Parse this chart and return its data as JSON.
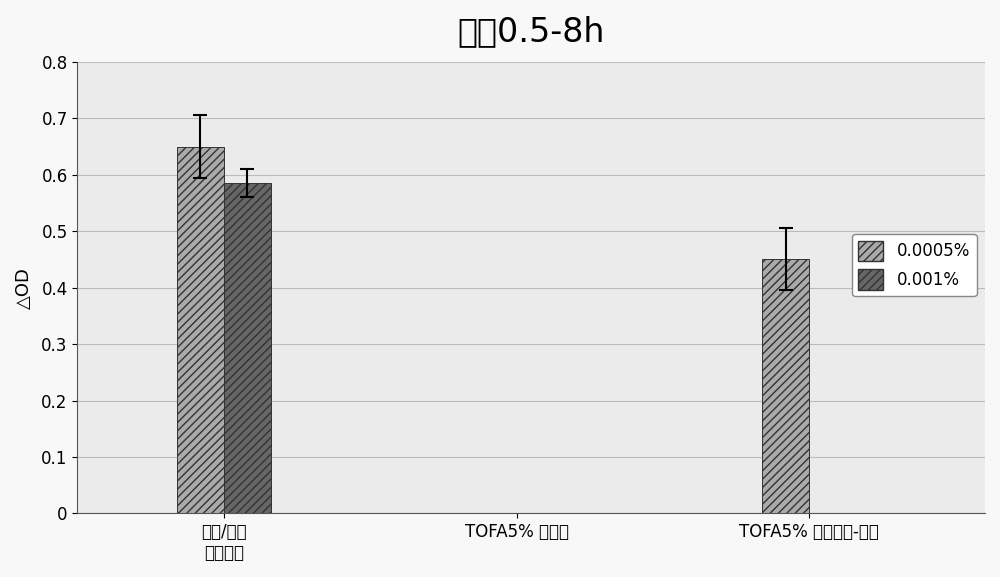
{
  "title": "浓度0.5-8h",
  "ylabel": "△OD",
  "ylim": [
    0,
    0.8
  ],
  "yticks": [
    0,
    0.1,
    0.2,
    0.3,
    0.4,
    0.5,
    0.6,
    0.7,
    0.8
  ],
  "x_labels": [
    "对照/对照\n（乙醇）",
    "TOFA5% 乙醇中",
    "TOFA5% 胃蛋白酶-胰酶"
  ],
  "series": [
    {
      "label": "0.0005%",
      "values": [
        0.65,
        0.0,
        0.45
      ],
      "errors": [
        0.055,
        0.0,
        0.055
      ],
      "color": "#aaaaaa",
      "hatch": "////"
    },
    {
      "label": "0.001%",
      "values": [
        0.585,
        0.0,
        0.0
      ],
      "errors": [
        0.025,
        0.0,
        0.0
      ],
      "color": "#666666",
      "hatch": "////"
    }
  ],
  "bar_width": 0.32,
  "title_fontsize": 24,
  "axis_fontsize": 13,
  "tick_fontsize": 12,
  "legend_fontsize": 12,
  "background_color": "#ebebeb",
  "grid_color": "#bbbbbb",
  "figure_bg": "#f8f8f8"
}
